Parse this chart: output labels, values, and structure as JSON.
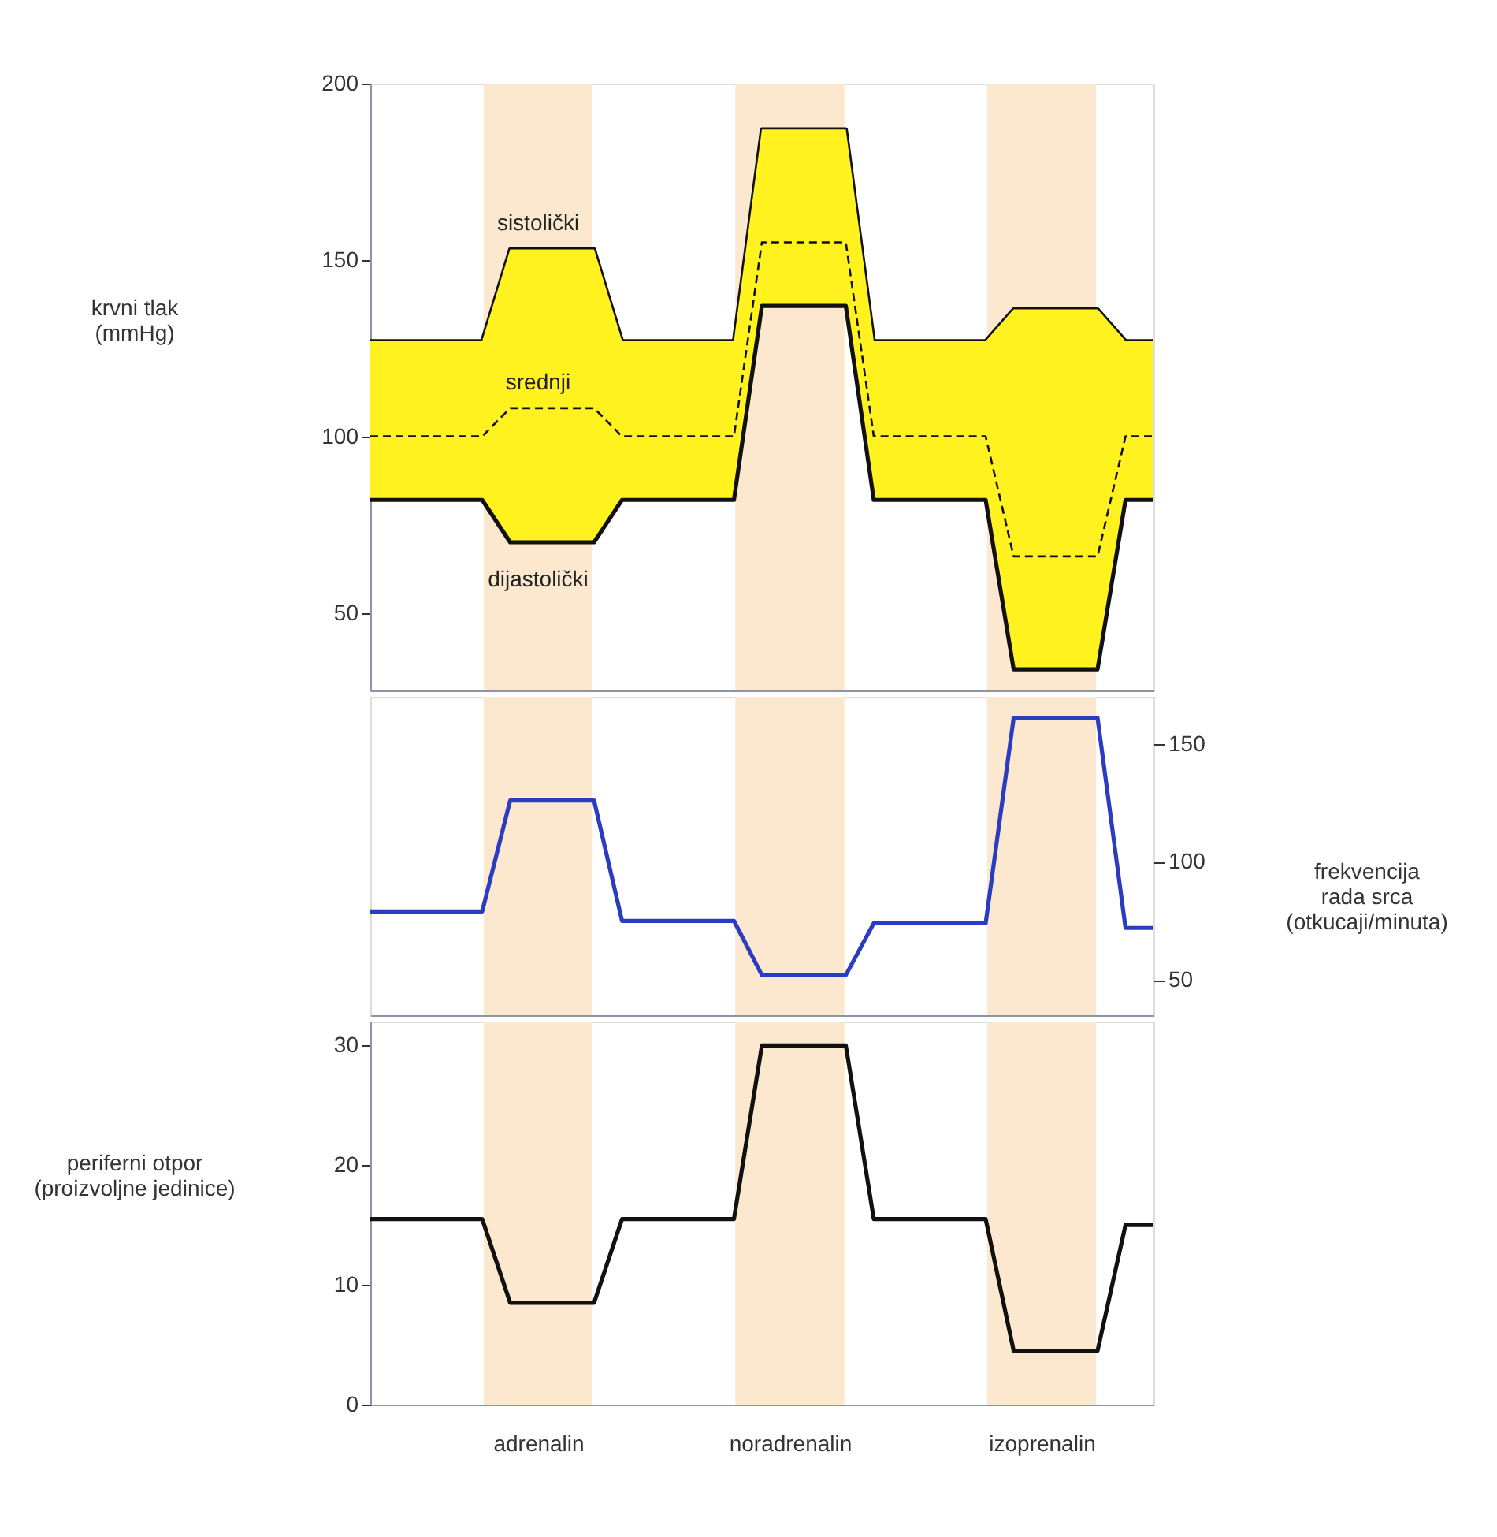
{
  "chart_data": [
    {
      "type": "line",
      "ylabel": "krvni tlak\n(mmHg)",
      "categories": [
        null,
        null,
        null,
        null,
        null,
        null,
        null,
        null,
        null,
        null,
        null,
        null,
        null,
        null,
        null,
        null,
        null,
        null,
        null,
        null,
        null,
        null,
        null,
        null,
        null,
        null,
        null,
        null,
        null
      ],
      "ylim": [
        28,
        200
      ],
      "yticks": [
        50,
        100,
        150,
        200
      ],
      "tick_labels": "y",
      "series": [
        {
          "name": "sistolički",
          "color": "#111111",
          "values": [
            127,
            127,
            127,
            127,
            127,
            153,
            153,
            153,
            153,
            127,
            127,
            127,
            127,
            127,
            187,
            187,
            187,
            187,
            127,
            127,
            127,
            127,
            127,
            136,
            136,
            136,
            136,
            127,
            127
          ]
        },
        {
          "name": "srednji",
          "color": "#111111",
          "line_style": "dashed",
          "values": [
            100,
            100,
            100,
            100,
            100,
            108,
            108,
            108,
            108,
            100,
            100,
            100,
            100,
            100,
            155,
            155,
            155,
            155,
            100,
            100,
            100,
            100,
            100,
            66,
            66,
            66,
            66,
            100,
            100
          ],
          "lower": [
            82,
            82,
            82,
            82,
            82,
            70,
            70,
            70,
            70,
            82,
            82,
            82,
            82,
            82,
            137,
            137,
            137,
            137,
            82,
            82,
            82,
            82,
            82,
            34,
            34,
            34,
            34,
            82,
            82
          ],
          "upper": [
            127,
            127,
            127,
            127,
            127,
            153,
            153,
            153,
            153,
            127,
            127,
            127,
            127,
            127,
            187,
            187,
            187,
            187,
            127,
            127,
            127,
            127,
            127,
            136,
            136,
            136,
            136,
            127,
            127
          ]
        },
        {
          "name": "dijastolički",
          "color": "#111111",
          "values": [
            82,
            82,
            82,
            82,
            82,
            70,
            70,
            70,
            70,
            82,
            82,
            82,
            82,
            82,
            137,
            137,
            137,
            137,
            82,
            82,
            82,
            82,
            82,
            34,
            34,
            34,
            34,
            82,
            82
          ]
        }
      ]
    },
    {
      "type": "line",
      "ylabel": "frekvencija\nrada srca\n(otkucaji/minuta)",
      "categories": [
        null,
        null,
        null,
        null,
        null,
        null,
        null,
        null,
        null,
        null,
        null,
        null,
        null,
        null,
        null,
        null,
        null,
        null,
        null,
        null,
        null,
        null,
        null,
        null,
        null,
        null,
        null,
        null,
        null
      ],
      "ylim": [
        35,
        170
      ],
      "yticks": [
        50,
        100,
        150
      ],
      "series": [
        {
          "color": "#2a3cc0",
          "values": [
            79,
            79,
            79,
            79,
            79,
            126,
            126,
            126,
            126,
            75,
            75,
            75,
            75,
            75,
            52,
            52,
            52,
            52,
            74,
            74,
            74,
            74,
            74,
            161,
            161,
            161,
            161,
            72,
            72
          ]
        }
      ]
    },
    {
      "type": "line",
      "ylabel": "periferni otpor\n(proizvoljne jedinice)",
      "categories": [
        null,
        null,
        null,
        null,
        null,
        null,
        "adrenalin",
        null,
        null,
        null,
        null,
        null,
        null,
        null,
        null,
        "noradrenalin",
        null,
        null,
        null,
        null,
        null,
        null,
        null,
        null,
        "izoprenalin",
        null,
        null,
        null,
        null
      ],
      "ylim": [
        0,
        32
      ],
      "yticks": [
        0,
        10,
        20,
        30
      ],
      "series": [
        {
          "color": "#111111",
          "values": [
            15.5,
            15.5,
            15.5,
            15.5,
            15.5,
            8.5,
            8.5,
            8.5,
            8.5,
            15.5,
            15.5,
            15.5,
            15.5,
            15.5,
            30,
            30,
            30,
            30,
            15.5,
            15.5,
            15.5,
            15.5,
            15.5,
            4.5,
            4.5,
            4.5,
            4.5,
            15,
            15
          ]
        }
      ]
    }
  ]
}
